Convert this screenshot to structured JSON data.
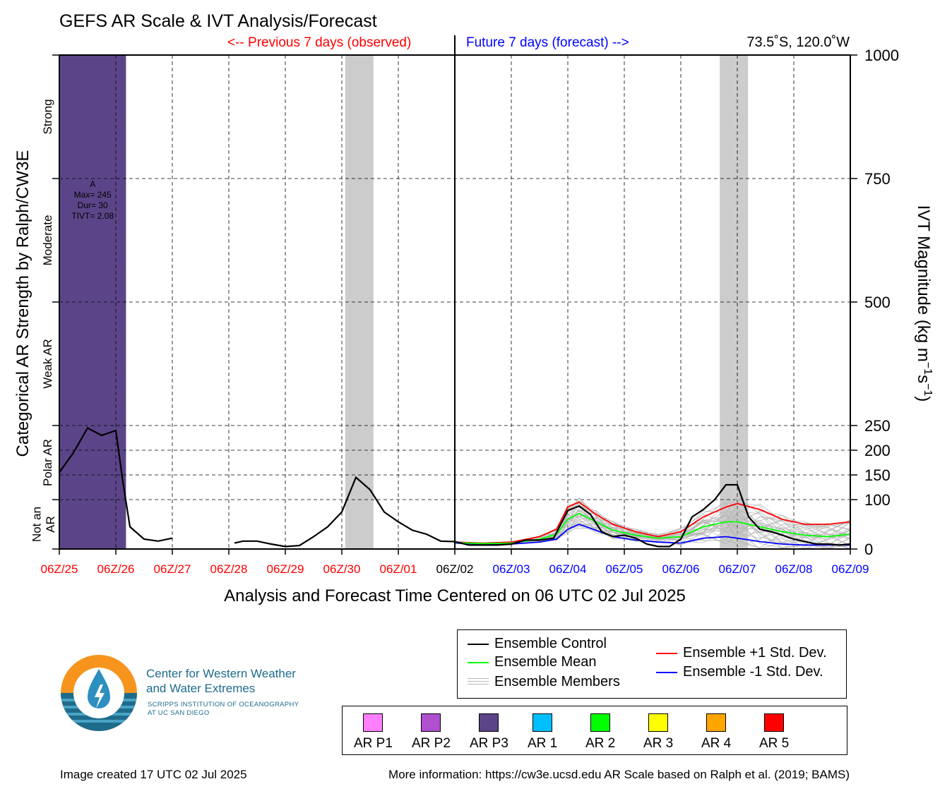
{
  "title": "GEFS AR Scale & IVT Analysis/Forecast",
  "prev_label": "<-- Previous 7 days (observed)",
  "next_label": "Future 7 days (forecast) -->",
  "location": "73.5˚S, 120.0˚W",
  "footer_left": "Image created 17 UTC 02 Jul 2025",
  "footer_right": "More information: https://cw3e.ucsd.edu AR Scale based on Ralph et al. (2019; BAMS)",
  "logo": {
    "name_line1": "Center for Western Weather",
    "name_line2": "and Water Extremes",
    "sub_line1": "SCRIPPS INSTITUTION OF OCEANOGRAPHY",
    "sub_line2": "AT UC SAN DIEGO"
  },
  "legend": {
    "control": "Ensemble Control",
    "mean": "Ensemble Mean",
    "members": "Ensemble Members",
    "plus": "Ensemble +1 Std. Dev.",
    "minus": "Ensemble -1 Std. Dev."
  },
  "categories": [
    {
      "label": "AR P1",
      "color": "#ff80ff"
    },
    {
      "label": "AR P2",
      "color": "#b04fd0"
    },
    {
      "label": "AR P3",
      "color": "#5b4588"
    },
    {
      "label": "AR 1",
      "color": "#00bfff"
    },
    {
      "label": "AR 2",
      "color": "#00ff00"
    },
    {
      "label": "AR 3",
      "color": "#ffff00"
    },
    {
      "label": "AR 4",
      "color": "#ffa500"
    },
    {
      "label": "AR 5",
      "color": "#ff0000"
    }
  ],
  "chart_data": {
    "type": "line",
    "xlabel": "Analysis and Forecast Time Centered on 06 UTC 02 Jul 2025",
    "ylabel_left": "Categorical AR Strength by Ralph/CW3E",
    "ylabel_right_base": "IVT Magnitude (kg m",
    "ylabel_right_sup1": "−1",
    "ylabel_right_mid": "s",
    "ylabel_right_sup2": "−1",
    "ylabel_right_end": ")",
    "x_unit": "days from 06Z/25 Jun 2025",
    "xlim": [
      0,
      14
    ],
    "ylim": [
      0,
      1000
    ],
    "center_day": 7,
    "x_ticks": [
      {
        "label": "06Z/25",
        "day": 0,
        "color": "#ff0000"
      },
      {
        "label": "06Z/26",
        "day": 1,
        "color": "#ff0000"
      },
      {
        "label": "06Z/27",
        "day": 2,
        "color": "#ff0000"
      },
      {
        "label": "06Z/28",
        "day": 3,
        "color": "#ff0000"
      },
      {
        "label": "06Z/29",
        "day": 4,
        "color": "#ff0000"
      },
      {
        "label": "06Z/30",
        "day": 5,
        "color": "#ff0000"
      },
      {
        "label": "06Z/01",
        "day": 6,
        "color": "#ff0000"
      },
      {
        "label": "06Z/02",
        "day": 7,
        "color": "#000000"
      },
      {
        "label": "06Z/03",
        "day": 8,
        "color": "#0000ff"
      },
      {
        "label": "06Z/04",
        "day": 9,
        "color": "#0000ff"
      },
      {
        "label": "06Z/05",
        "day": 10,
        "color": "#0000ff"
      },
      {
        "label": "06Z/06",
        "day": 11,
        "color": "#0000ff"
      },
      {
        "label": "06Z/07",
        "day": 12,
        "color": "#0000ff"
      },
      {
        "label": "06Z/08",
        "day": 13,
        "color": "#0000ff"
      },
      {
        "label": "06Z/09",
        "day": 14,
        "color": "#0000ff"
      }
    ],
    "y_ticks_right": [
      0,
      100,
      150,
      200,
      250,
      500,
      750,
      1000
    ],
    "category_bands": [
      {
        "label": "Not an AR",
        "lines": [
          "Not an",
          "AR"
        ],
        "from": 0,
        "to": 100
      },
      {
        "label": "Polar AR",
        "lines": [
          "Polar AR"
        ],
        "from": 100,
        "to": 250
      },
      {
        "label": "Weak AR",
        "lines": [
          "Weak AR"
        ],
        "from": 250,
        "to": 500
      },
      {
        "label": "Moderate",
        "lines": [
          "Moderate"
        ],
        "from": 500,
        "to": 750
      },
      {
        "label": "Strong",
        "lines": [
          "Strong"
        ],
        "from": 750,
        "to": 1000
      }
    ],
    "ar_event": {
      "category": "AR P3",
      "color": "#5b4588",
      "x_start": 0,
      "x_end": 1.18,
      "annotation": [
        "A",
        "Max= 245",
        "Dur= 30",
        "TIVT= 2.08"
      ]
    },
    "gray_shading": [
      [
        5.06,
        5.56
      ],
      [
        11.69,
        12.19
      ]
    ],
    "series": [
      {
        "name": "Ensemble Control",
        "color": "#000000",
        "segments": [
          [
            [
              0,
              155
            ],
            [
              0.25,
              195
            ],
            [
              0.5,
              245
            ],
            [
              0.75,
              230
            ],
            [
              1.0,
              240
            ],
            [
              1.12,
              140
            ],
            [
              1.25,
              45
            ],
            [
              1.5,
              20
            ],
            [
              1.75,
              16
            ],
            [
              2.0,
              22
            ]
          ],
          [
            [
              3.1,
              12
            ],
            [
              3.25,
              16
            ],
            [
              3.5,
              16
            ],
            [
              3.75,
              10
            ],
            [
              4.0,
              5
            ],
            [
              4.25,
              7
            ],
            [
              4.5,
              25
            ],
            [
              4.75,
              45
            ],
            [
              5.0,
              75
            ],
            [
              5.25,
              145
            ],
            [
              5.5,
              120
            ],
            [
              5.75,
              75
            ],
            [
              6.0,
              55
            ],
            [
              6.25,
              38
            ],
            [
              6.5,
              30
            ],
            [
              6.75,
              16
            ],
            [
              7.0,
              15
            ],
            [
              7.25,
              8
            ],
            [
              7.5,
              8
            ],
            [
              7.75,
              8
            ],
            [
              8.0,
              10
            ],
            [
              8.25,
              18
            ],
            [
              8.5,
              18
            ],
            [
              8.75,
              22
            ],
            [
              9.0,
              78
            ],
            [
              9.2,
              87
            ],
            [
              9.4,
              70
            ],
            [
              9.6,
              35
            ],
            [
              9.8,
              25
            ],
            [
              10.0,
              28
            ],
            [
              10.2,
              22
            ],
            [
              10.4,
              10
            ],
            [
              10.6,
              5
            ],
            [
              10.8,
              5
            ],
            [
              11.0,
              20
            ],
            [
              11.2,
              65
            ],
            [
              11.4,
              80
            ],
            [
              11.6,
              100
            ],
            [
              11.8,
              130
            ],
            [
              12.0,
              130
            ],
            [
              12.2,
              65
            ],
            [
              12.4,
              40
            ],
            [
              12.6,
              35
            ],
            [
              12.8,
              28
            ],
            [
              13.0,
              20
            ],
            [
              13.2,
              15
            ],
            [
              13.4,
              10
            ],
            [
              13.6,
              10
            ],
            [
              13.8,
              8
            ],
            [
              14.0,
              10
            ]
          ]
        ]
      },
      {
        "name": "Ensemble Mean",
        "color": "#00ff00",
        "segments": [
          [
            [
              7.0,
              13
            ],
            [
              7.5,
              11
            ],
            [
              8.0,
              12
            ],
            [
              8.5,
              20
            ],
            [
              8.8,
              30
            ],
            [
              9.0,
              60
            ],
            [
              9.2,
              72
            ],
            [
              9.5,
              55
            ],
            [
              9.8,
              38
            ],
            [
              10.2,
              28
            ],
            [
              10.6,
              22
            ],
            [
              11.0,
              25
            ],
            [
              11.4,
              45
            ],
            [
              11.8,
              55
            ],
            [
              12.0,
              55
            ],
            [
              12.4,
              45
            ],
            [
              12.8,
              35
            ],
            [
              13.2,
              28
            ],
            [
              13.6,
              25
            ],
            [
              14.0,
              30
            ]
          ]
        ]
      },
      {
        "name": "Ensemble +1 Std. Dev.",
        "color": "#ff0000",
        "segments": [
          [
            [
              7.0,
              14
            ],
            [
              7.5,
              12
            ],
            [
              8.0,
              14
            ],
            [
              8.5,
              25
            ],
            [
              8.8,
              40
            ],
            [
              9.0,
              85
            ],
            [
              9.2,
              95
            ],
            [
              9.5,
              70
            ],
            [
              9.8,
              50
            ],
            [
              10.2,
              35
            ],
            [
              10.6,
              25
            ],
            [
              11.0,
              35
            ],
            [
              11.4,
              65
            ],
            [
              11.8,
              85
            ],
            [
              12.0,
              92
            ],
            [
              12.4,
              80
            ],
            [
              12.8,
              60
            ],
            [
              13.2,
              50
            ],
            [
              13.6,
              50
            ],
            [
              14.0,
              55
            ]
          ]
        ]
      },
      {
        "name": "Ensemble -1 Std. Dev.",
        "color": "#0000ff",
        "segments": [
          [
            [
              7.0,
              12
            ],
            [
              7.5,
              10
            ],
            [
              8.0,
              10
            ],
            [
              8.5,
              14
            ],
            [
              8.8,
              20
            ],
            [
              9.0,
              40
            ],
            [
              9.2,
              50
            ],
            [
              9.5,
              38
            ],
            [
              9.8,
              25
            ],
            [
              10.2,
              18
            ],
            [
              10.6,
              14
            ],
            [
              11.0,
              12
            ],
            [
              11.4,
              22
            ],
            [
              11.8,
              25
            ],
            [
              12.0,
              22
            ],
            [
              12.4,
              15
            ],
            [
              12.8,
              10
            ],
            [
              13.2,
              8
            ],
            [
              13.6,
              8
            ],
            [
              14.0,
              8
            ]
          ]
        ]
      }
    ]
  }
}
